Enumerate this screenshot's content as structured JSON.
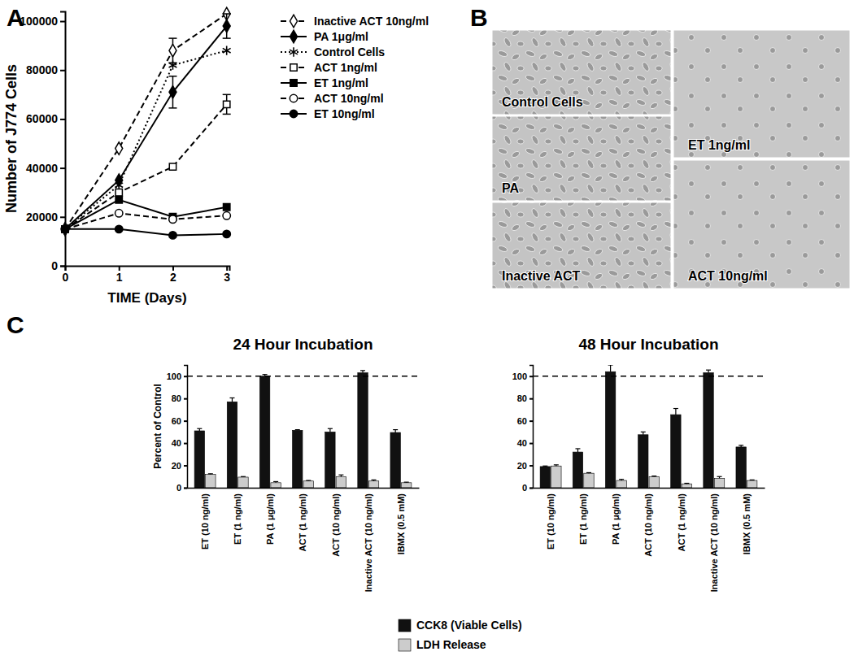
{
  "panel_labels": [
    "A",
    "B",
    "C"
  ],
  "micrographs": {
    "images": [
      {
        "label": "Control Cells"
      },
      {
        "label": "PA"
      },
      {
        "label": "Inactive ACT"
      },
      {
        "label": "ET 1ng/ml"
      },
      {
        "label": "ACT 10ng/ml"
      }
    ]
  },
  "chart_data": [
    {
      "type": "line",
      "xlabel": "TIME (Days)",
      "ylabel": "Number of J774 Cells",
      "x": [
        0,
        1,
        2,
        3
      ],
      "xlim": [
        0,
        3.05
      ],
      "xticks": [
        0,
        1,
        2,
        3
      ],
      "ylim": [
        0,
        104000
      ],
      "yticks": [
        0,
        20000,
        40000,
        60000,
        80000,
        100000
      ],
      "legend": "right",
      "series": [
        {
          "name": "Inactive ACT 10ng/ml",
          "color": "#000000",
          "marker": "diamond-open",
          "line_style": "dashed",
          "values": [
            15000,
            48000,
            88000,
            103000
          ],
          "errors": [
            null,
            null,
            5000,
            null
          ]
        },
        {
          "name": "PA 1μg/ml",
          "color": "#000000",
          "marker": "diamond",
          "line_style": "solid",
          "values": [
            15000,
            35000,
            71000,
            98000
          ],
          "errors": [
            null,
            null,
            6500,
            5000
          ]
        },
        {
          "name": "Control Cells",
          "color": "#000000",
          "marker": "asterisk",
          "line_style": "dotted",
          "values": [
            15000,
            33000,
            82000,
            88000
          ],
          "errors": [
            null,
            null,
            null,
            null
          ]
        },
        {
          "name": "ACT 1ng/ml",
          "color": "#000000",
          "marker": "square-open",
          "line_style": "dashed",
          "values": [
            15000,
            30000,
            40500,
            66000
          ],
          "errors": [
            null,
            null,
            null,
            4000
          ]
        },
        {
          "name": "ET 1ng/ml",
          "color": "#000000",
          "marker": "square",
          "line_style": "solid",
          "values": [
            15000,
            27000,
            20000,
            24000
          ],
          "errors": [
            null,
            null,
            null,
            null
          ]
        },
        {
          "name": "ACT 10ng/ml",
          "color": "#000000",
          "marker": "circle-open",
          "line_style": "dashed",
          "values": [
            15000,
            21500,
            19000,
            20500
          ],
          "errors": [
            null,
            null,
            null,
            null
          ]
        },
        {
          "name": "ET 10ng/ml",
          "color": "#000000",
          "marker": "circle",
          "line_style": "solid",
          "values": [
            15000,
            15000,
            12500,
            13000
          ],
          "errors": [
            null,
            null,
            null,
            null
          ]
        }
      ]
    },
    {
      "type": "bar",
      "ylabel": "Percent of Control",
      "ylim": [
        0,
        110
      ],
      "yticks": [
        0,
        20,
        40,
        60,
        80,
        100
      ],
      "reference_line": 100,
      "legend": "bottom",
      "series": [
        {
          "name": "CCK8 (Viable Cells)",
          "color": "#111111"
        },
        {
          "name": "LDH Release",
          "color": "#cccccc"
        }
      ],
      "panels": [
        {
          "title": "24  Hour Incubation",
          "categories": [
            "ET (10 ng/ml)",
            "ET (1 ng/ml)",
            "PA (1 μg/ml)",
            "ACT (1 ng/ml)",
            "ACT (10 ng/ml)",
            "Inactive ACT (10 ng/ml)",
            "IBMX (0.5 mM)"
          ],
          "values": [
            [
              51,
              77,
              100,
              51.5,
              50,
              103,
              49.5
            ],
            [
              12,
              9.5,
              4.5,
              6,
              10,
              6,
              4.5
            ]
          ],
          "errors": [
            [
              2,
              3.5,
              1.5,
              0.5,
              3,
              2,
              2.5
            ],
            [
              0.5,
              0.5,
              1,
              0.5,
              1.5,
              1,
              0.5
            ]
          ]
        },
        {
          "title": "48 Hour Incubation",
          "categories": [
            "ET (10 ng/ml)",
            "ET (1 ng/ml)",
            "PA (1 μg/ml)",
            "ACT (10 ng/ml)",
            "ACT (1 ng/ml)",
            "Inactive ACT (10 ng/ml)",
            "IBMX (0.5 mM)"
          ],
          "values": [
            [
              19,
              32,
              104,
              47.5,
              65.5,
              103,
              36.5
            ],
            [
              19.5,
              13,
              6.5,
              10,
              3.5,
              8.5,
              6.5
            ]
          ],
          "errors": [
            [
              0.5,
              3,
              6,
              2.5,
              5.5,
              2.5,
              1.5
            ],
            [
              1,
              0.5,
              1,
              0.5,
              0.5,
              1.5,
              0.5
            ]
          ]
        }
      ]
    }
  ]
}
